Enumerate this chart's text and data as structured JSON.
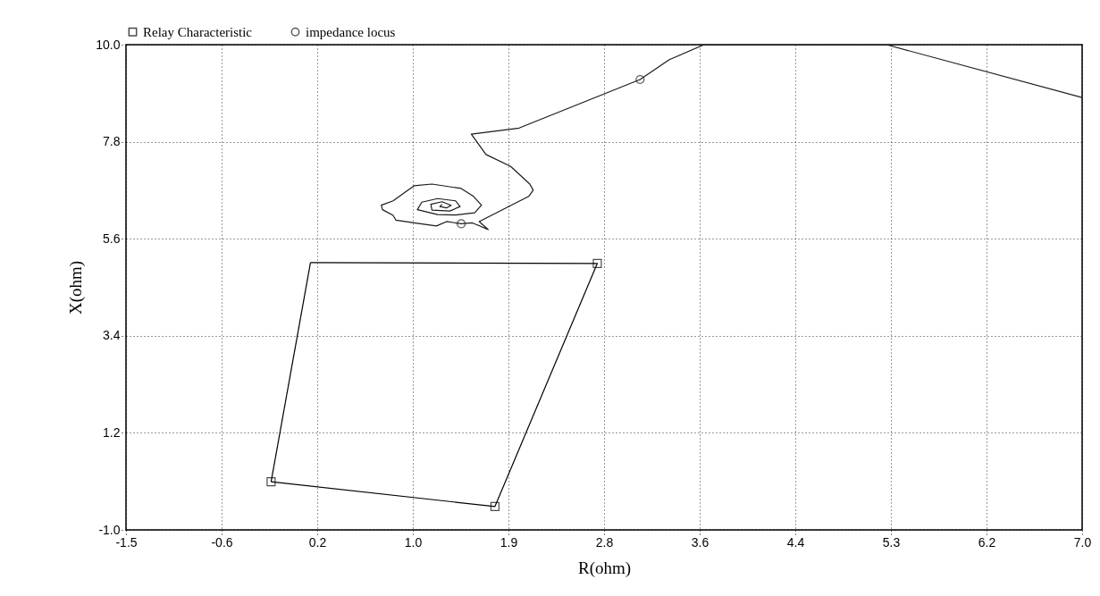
{
  "chart_data": {
    "type": "line",
    "xlabel": "R(ohm)",
    "ylabel": "X(ohm)",
    "xlim": [
      -1.5,
      7.0
    ],
    "ylim": [
      -1.0,
      10.0
    ],
    "xticks": [
      {
        "value": -1.5,
        "label": "-1.5"
      },
      {
        "value": -0.65,
        "label": "-0.6"
      },
      {
        "value": 0.2,
        "label": "0.2"
      },
      {
        "value": 1.05,
        "label": "1.0"
      },
      {
        "value": 1.9,
        "label": "1.9"
      },
      {
        "value": 2.75,
        "label": "2.8"
      },
      {
        "value": 3.6,
        "label": "3.6"
      },
      {
        "value": 4.45,
        "label": "4.4"
      },
      {
        "value": 5.3,
        "label": "5.3"
      },
      {
        "value": 6.15,
        "label": "6.2"
      },
      {
        "value": 7.0,
        "label": "7.0"
      }
    ],
    "yticks": [
      {
        "value": -1.0,
        "label": "-1.0"
      },
      {
        "value": 1.2,
        "label": "1.2"
      },
      {
        "value": 3.4,
        "label": "3.4"
      },
      {
        "value": 5.6,
        "label": "5.6"
      },
      {
        "value": 7.8,
        "label": "7.8"
      },
      {
        "value": 10.0,
        "label": "10.0"
      }
    ],
    "grid": true,
    "legend": "top",
    "series": [
      {
        "color": "#000000",
        "x": [
          -0.21,
          1.78,
          2.69,
          0.14
        ],
        "values": [
          0.09,
          -0.47,
          5.04,
          5.06
        ]
      },
      {
        "color": "#000000",
        "x": [
          0.14,
          -0.21
        ],
        "values": [
          5.06,
          0.09
        ]
      },
      {
        "color": "#1a1a1a",
        "x": [
          7.0,
          5.26,
          3.64,
          3.33,
          3.07,
          1.995,
          1.57,
          1.7,
          1.92,
          2.09,
          2.12,
          2.08,
          1.64,
          1.72,
          1.58,
          1.48,
          1.35,
          1.26,
          1.06,
          0.9,
          0.875,
          0.78,
          0.77,
          0.875,
          0.93,
          1.06,
          1.22,
          1.48,
          1.59,
          1.66,
          1.6,
          1.43,
          1.27,
          1.09,
          1.13,
          1.27,
          1.43,
          1.47,
          1.38,
          1.22,
          1.21,
          1.31,
          1.39,
          1.35,
          1.29,
          1.31
        ],
        "values": [
          8.8,
          10.0,
          10.0,
          9.66,
          9.21,
          8.11,
          7.97,
          7.51,
          7.24,
          6.84,
          6.7,
          6.56,
          5.99,
          5.81,
          5.96,
          5.94,
          5.99,
          5.89,
          5.96,
          6.02,
          6.13,
          6.26,
          6.36,
          6.46,
          6.56,
          6.8,
          6.84,
          6.74,
          6.56,
          6.36,
          6.19,
          6.14,
          6.15,
          6.26,
          6.43,
          6.51,
          6.46,
          6.33,
          6.23,
          6.25,
          6.38,
          6.44,
          6.36,
          6.3,
          6.33,
          6.38
        ]
      },
      {
        "type": "scatter",
        "name": "Relay Characteristic",
        "color": "#000000",
        "marker": "square",
        "x": [
          -0.21,
          1.78,
          2.69
        ],
        "values": [
          0.09,
          -0.47,
          5.04
        ]
      },
      {
        "type": "scatter",
        "name": "impedance locus",
        "color": "#1a1a1a",
        "marker": "circle",
        "x": [
          3.07,
          1.48
        ],
        "values": [
          9.21,
          5.94
        ]
      }
    ]
  }
}
